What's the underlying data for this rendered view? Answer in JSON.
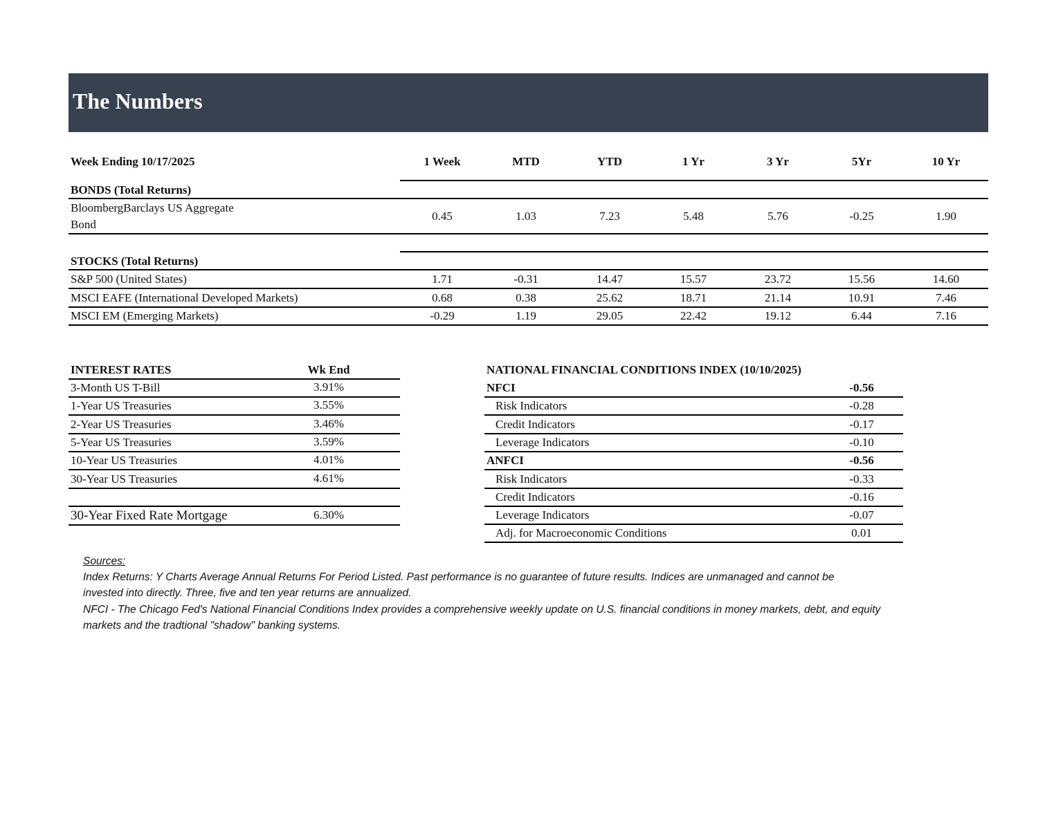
{
  "header": {
    "title": "The Numbers",
    "bg_color": "#37414f"
  },
  "returns": {
    "week_ending": "Week Ending 10/17/2025",
    "columns": [
      "1 Week",
      "MTD",
      "YTD",
      "1 Yr",
      "3 Yr",
      "5Yr",
      "10 Yr"
    ],
    "bonds": {
      "heading": "BONDS (Total Returns)",
      "rows": [
        {
          "name_line1": "BloombergBarclays US Aggregate",
          "name_line2": "Bond",
          "values": [
            "0.45",
            "1.03",
            "7.23",
            "5.48",
            "5.76",
            "-0.25",
            "1.90"
          ]
        }
      ]
    },
    "stocks": {
      "heading": "STOCKS (Total Returns)",
      "rows": [
        {
          "name": "S&P 500 (United States)",
          "values": [
            "1.71",
            "-0.31",
            "14.47",
            "15.57",
            "23.72",
            "15.56",
            "14.60"
          ]
        },
        {
          "name": "MSCI EAFE (International Developed Markets)",
          "values": [
            "0.68",
            "0.38",
            "25.62",
            "18.71",
            "21.14",
            "10.91",
            "7.46"
          ]
        },
        {
          "name": "MSCI EM (Emerging Markets)",
          "values": [
            "-0.29",
            "1.19",
            "29.05",
            "22.42",
            "19.12",
            "6.44",
            "7.16"
          ]
        }
      ]
    }
  },
  "interest_rates": {
    "heading": "INTEREST RATES",
    "col": "Wk End",
    "rows": [
      {
        "name": "3-Month US T-Bill",
        "value": "3.91%"
      },
      {
        "name": "1-Year US Treasuries",
        "value": "3.55%"
      },
      {
        "name": "2-Year US Treasuries",
        "value": "3.46%"
      },
      {
        "name": "5-Year US Treasuries",
        "value": "3.59%"
      },
      {
        "name": "10-Year US Treasuries",
        "value": "4.01%"
      },
      {
        "name": "30-Year US Treasuries",
        "value": "4.61%"
      }
    ],
    "mortgage": {
      "name": "30-Year Fixed Rate Mortgage",
      "value": "6.30%"
    }
  },
  "nfci": {
    "heading": "NATIONAL FINANCIAL CONDITIONS INDEX (10/10/2025)",
    "rows": [
      {
        "name": "NFCI",
        "value": "-0.56",
        "bold": true
      },
      {
        "name": "Risk Indicators",
        "value": "-0.28"
      },
      {
        "name": "Credit Indicators",
        "value": "-0.17"
      },
      {
        "name": "Leverage Indicators",
        "value": "-0.10"
      },
      {
        "name": "ANFCI",
        "value": "-0.56",
        "bold": true
      },
      {
        "name": "Risk Indicators",
        "value": "-0.33"
      },
      {
        "name": "Credit Indicators",
        "value": "-0.16"
      },
      {
        "name": "Leverage Indicators",
        "value": "-0.07"
      },
      {
        "name": "Adj. for Macroeconomic Conditions",
        "value": "0.01"
      }
    ]
  },
  "sources": {
    "label": "Sources:",
    "lines": [
      "Index Returns:  Y Charts Average Annual Returns For Period Listed.  Past performance is no guarantee of future results.  Indices are unmanaged and cannot be",
      "invested into directly.  Three, five and ten year returns are annualized.",
      "NFCI - The Chicago Fed's National Financial Conditions Index provides a comprehensive weekly update on U.S. financial conditions in money markets, debt, and equity",
      "markets and the tradtional \"shadow\" banking systems."
    ]
  }
}
